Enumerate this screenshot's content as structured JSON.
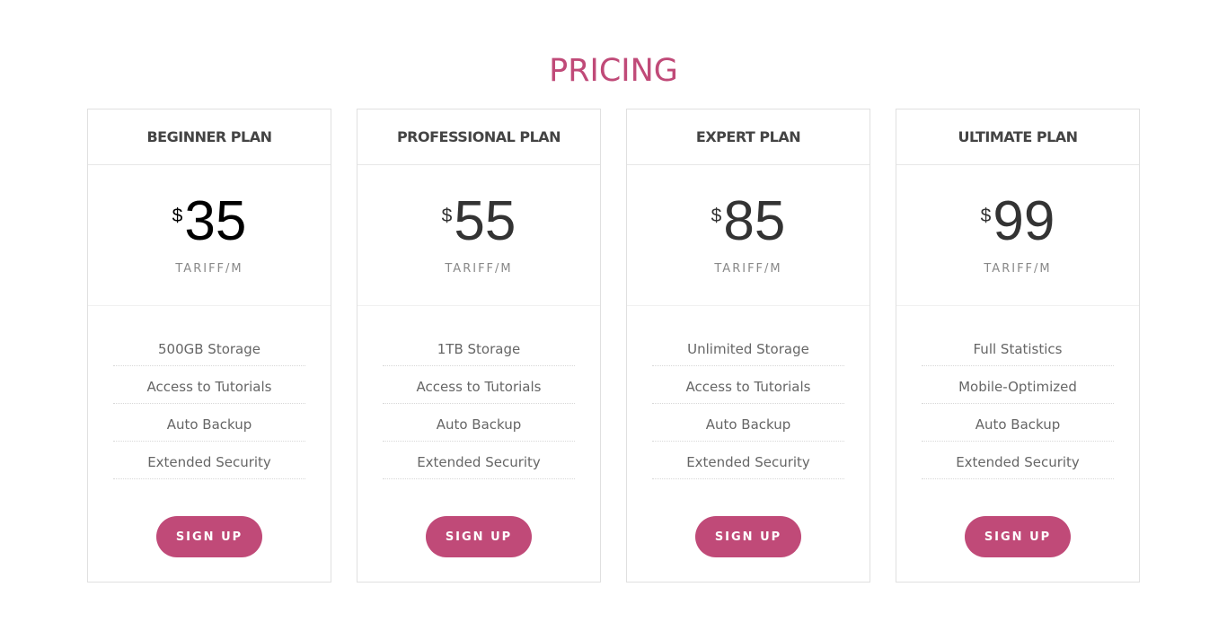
{
  "title": "PRICING",
  "accent_color": "#c04a78",
  "plans": [
    {
      "name": "BEGINNER PLAN",
      "currency": "$",
      "price": "35",
      "period": "TARIFF/M",
      "features": [
        "500GB Storage",
        "Access to Tutorials",
        "Auto Backup",
        "Extended Security"
      ],
      "button": "SIGN UP"
    },
    {
      "name": "PROFESSIONAL PLAN",
      "currency": "$",
      "price": "55",
      "period": "TARIFF/M",
      "features": [
        "1TB Storage",
        "Access to Tutorials",
        "Auto Backup",
        "Extended Security"
      ],
      "button": "SIGN UP"
    },
    {
      "name": "EXPERT PLAN",
      "currency": "$",
      "price": "85",
      "period": "TARIFF/M",
      "features": [
        "Unlimited Storage",
        "Access to Tutorials",
        "Auto Backup",
        "Extended Security"
      ],
      "button": "SIGN UP"
    },
    {
      "name": "ULTIMATE PLAN",
      "currency": "$",
      "price": "99",
      "period": "TARIFF/M",
      "features": [
        "Full Statistics",
        "Mobile-Optimized",
        "Auto Backup",
        "Extended Security"
      ],
      "button": "SIGN UP"
    }
  ]
}
